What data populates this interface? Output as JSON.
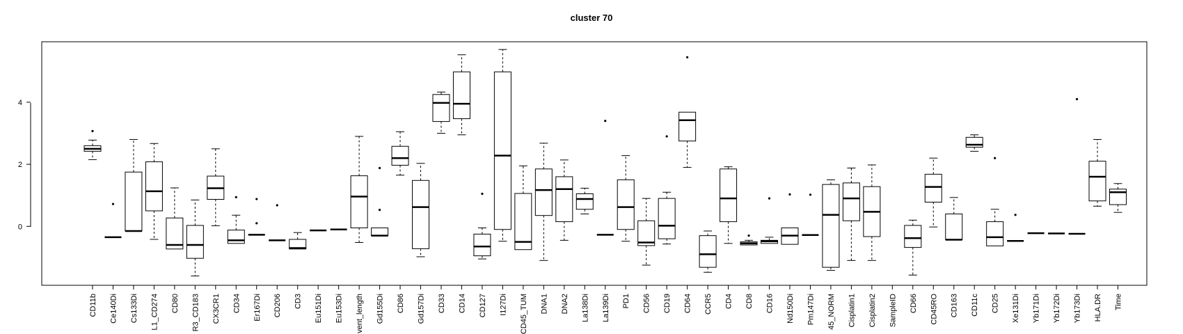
{
  "chart_data": {
    "type": "box",
    "title": "cluster 70",
    "xlabel": "",
    "ylabel": "",
    "ylim": [
      -1.9,
      5.95
    ],
    "yticks": [
      0,
      2,
      4
    ],
    "ytick_labels": [
      "0",
      "2",
      "4"
    ],
    "grid": false,
    "legend": "none",
    "boxes": [
      {
        "label": "CD11b",
        "min": 2.15,
        "q1": 2.42,
        "median": 2.5,
        "q3": 2.6,
        "max": 2.78,
        "outliers": [
          3.07
        ]
      },
      {
        "label": "Ce140Di",
        "min": -0.35,
        "q1": -0.35,
        "median": -0.35,
        "q3": -0.35,
        "max": -0.35,
        "outliers": [
          0.72
        ]
      },
      {
        "label": "Cs133Di",
        "min": -0.15,
        "q1": -0.15,
        "median": -0.15,
        "q3": 1.75,
        "max": 2.8,
        "outliers": []
      },
      {
        "label": "L1_CD274",
        "min": -0.42,
        "q1": 0.5,
        "median": 1.13,
        "q3": 2.08,
        "max": 2.67,
        "outliers": []
      },
      {
        "label": "CD80",
        "min": -0.73,
        "q1": -0.73,
        "median": -0.6,
        "q3": 0.27,
        "max": 1.24,
        "outliers": []
      },
      {
        "label": "R3_CD183",
        "min": -1.6,
        "q1": -1.03,
        "median": -0.6,
        "q3": 0.03,
        "max": 0.85,
        "outliers": []
      },
      {
        "label": "CX3CR1",
        "min": 0.02,
        "q1": 0.87,
        "median": 1.23,
        "q3": 1.62,
        "max": 2.5,
        "outliers": []
      },
      {
        "label": "CD34",
        "min": -0.55,
        "q1": -0.55,
        "median": -0.45,
        "q3": -0.12,
        "max": 0.36,
        "outliers": [
          0.94
        ]
      },
      {
        "label": "Er167Di",
        "min": -0.27,
        "q1": -0.27,
        "median": -0.27,
        "q3": -0.27,
        "max": -0.27,
        "outliers": [
          0.1,
          0.88
        ]
      },
      {
        "label": "CD206",
        "min": -0.45,
        "q1": -0.45,
        "median": -0.45,
        "q3": -0.45,
        "max": -0.45,
        "outliers": [
          0.68
        ]
      },
      {
        "label": "CD3",
        "min": -0.73,
        "q1": -0.73,
        "median": -0.7,
        "q3": -0.42,
        "max": -0.2,
        "outliers": []
      },
      {
        "label": "Eu151Di",
        "min": -0.13,
        "q1": -0.13,
        "median": -0.13,
        "q3": -0.13,
        "max": -0.13,
        "outliers": []
      },
      {
        "label": "Eu153Di",
        "min": -0.1,
        "q1": -0.1,
        "median": -0.1,
        "q3": -0.1,
        "max": -0.1,
        "outliers": []
      },
      {
        "label": "vent_length",
        "min": -0.52,
        "q1": -0.05,
        "median": 0.96,
        "q3": 1.63,
        "max": 2.9,
        "outliers": []
      },
      {
        "label": "Gd155Di",
        "min": -0.3,
        "q1": -0.3,
        "median": -0.3,
        "q3": -0.05,
        "max": -0.05,
        "outliers": [
          0.53,
          1.88
        ]
      },
      {
        "label": "CD86",
        "min": 1.65,
        "q1": 1.97,
        "median": 2.2,
        "q3": 2.58,
        "max": 3.05,
        "outliers": []
      },
      {
        "label": "Gd157Di",
        "min": -0.98,
        "q1": -0.72,
        "median": 0.62,
        "q3": 1.48,
        "max": 2.03,
        "outliers": []
      },
      {
        "label": "CD33",
        "min": 3.0,
        "q1": 3.38,
        "median": 3.98,
        "q3": 4.25,
        "max": 4.33,
        "outliers": []
      },
      {
        "label": "CD14",
        "min": 2.95,
        "q1": 3.47,
        "median": 3.95,
        "q3": 4.98,
        "max": 5.53,
        "outliers": []
      },
      {
        "label": "CD127",
        "min": -1.05,
        "q1": -0.95,
        "median": -0.65,
        "q3": -0.25,
        "max": -0.05,
        "outliers": [
          1.05
        ]
      },
      {
        "label": "I127Di",
        "min": -0.48,
        "q1": -0.1,
        "median": 2.28,
        "q3": 4.98,
        "max": 5.7,
        "outliers": []
      },
      {
        "label": "CD45_TUM",
        "min": -0.75,
        "q1": -0.75,
        "median": -0.5,
        "q3": 1.06,
        "max": 1.95,
        "outliers": []
      },
      {
        "label": "DNA1",
        "min": -1.1,
        "q1": 0.35,
        "median": 1.17,
        "q3": 1.85,
        "max": 2.68,
        "outliers": []
      },
      {
        "label": "DNA2",
        "min": -0.45,
        "q1": 0.15,
        "median": 1.2,
        "q3": 1.6,
        "max": 2.14,
        "outliers": []
      },
      {
        "label": "La138Di",
        "min": 0.4,
        "q1": 0.55,
        "median": 0.88,
        "q3": 1.05,
        "max": 1.23,
        "outliers": []
      },
      {
        "label": "La139Di",
        "min": -0.27,
        "q1": -0.27,
        "median": -0.27,
        "q3": -0.27,
        "max": -0.27,
        "outliers": [
          3.4
        ]
      },
      {
        "label": "PD1",
        "min": -0.48,
        "q1": -0.1,
        "median": 0.62,
        "q3": 1.5,
        "max": 2.28,
        "outliers": []
      },
      {
        "label": "CD56",
        "min": -1.25,
        "q1": -0.62,
        "median": -0.52,
        "q3": 0.18,
        "max": 0.9,
        "outliers": []
      },
      {
        "label": "CD19",
        "min": -0.57,
        "q1": -0.4,
        "median": 0.02,
        "q3": 0.9,
        "max": 1.1,
        "outliers": [
          2.9
        ]
      },
      {
        "label": "CD64",
        "min": 1.9,
        "q1": 2.75,
        "median": 3.42,
        "q3": 3.68,
        "max": 3.68,
        "outliers": [
          5.45
        ]
      },
      {
        "label": "CCR5",
        "min": -1.48,
        "q1": -1.32,
        "median": -0.9,
        "q3": -0.3,
        "max": -0.15,
        "outliers": []
      },
      {
        "label": "CD4",
        "min": -0.55,
        "q1": 0.15,
        "median": 0.9,
        "q3": 1.85,
        "max": 1.92,
        "outliers": []
      },
      {
        "label": "CD8",
        "min": -0.6,
        "q1": -0.6,
        "median": -0.55,
        "q3": -0.5,
        "max": -0.45,
        "outliers": [
          -0.3
        ]
      },
      {
        "label": "CD16",
        "min": -0.55,
        "q1": -0.55,
        "median": -0.48,
        "q3": -0.45,
        "max": -0.35,
        "outliers": [
          0.9
        ]
      },
      {
        "label": "Nd150Di",
        "min": -0.58,
        "q1": -0.58,
        "median": -0.3,
        "q3": -0.05,
        "max": -0.05,
        "outliers": [
          1.03
        ]
      },
      {
        "label": "Pm147Di",
        "min": -0.28,
        "q1": -0.28,
        "median": -0.28,
        "q3": -0.28,
        "max": -0.28,
        "outliers": [
          1.02
        ]
      },
      {
        "label": "45_NORM",
        "min": -1.42,
        "q1": -1.32,
        "median": 0.37,
        "q3": 1.35,
        "max": 1.5,
        "outliers": []
      },
      {
        "label": "Cisplatin1",
        "min": -1.1,
        "q1": 0.18,
        "median": 0.9,
        "q3": 1.4,
        "max": 1.88,
        "outliers": []
      },
      {
        "label": "Cisplatin2",
        "min": -1.1,
        "q1": -0.33,
        "median": 0.47,
        "q3": 1.28,
        "max": 1.98,
        "outliers": []
      },
      {
        "label": "SampleID",
        "min": null,
        "q1": null,
        "median": null,
        "q3": null,
        "max": null,
        "outliers": []
      },
      {
        "label": "CD66",
        "min": -1.57,
        "q1": -0.68,
        "median": -0.38,
        "q3": 0.03,
        "max": 0.2,
        "outliers": []
      },
      {
        "label": "CD45RO",
        "min": -0.02,
        "q1": 0.78,
        "median": 1.27,
        "q3": 1.68,
        "max": 2.2,
        "outliers": []
      },
      {
        "label": "CD163",
        "min": -0.43,
        "q1": -0.43,
        "median": -0.43,
        "q3": 0.4,
        "max": 0.93,
        "outliers": []
      },
      {
        "label": "CD11c",
        "min": 2.42,
        "q1": 2.55,
        "median": 2.63,
        "q3": 2.87,
        "max": 2.95,
        "outliers": []
      },
      {
        "label": "CD25",
        "min": -0.63,
        "q1": -0.63,
        "median": -0.35,
        "q3": 0.15,
        "max": 0.55,
        "outliers": [
          2.2
        ]
      },
      {
        "label": "Xe131Di",
        "min": -0.47,
        "q1": -0.47,
        "median": -0.47,
        "q3": -0.47,
        "max": -0.47,
        "outliers": [
          0.37
        ]
      },
      {
        "label": "Yb171Di",
        "min": -0.22,
        "q1": -0.22,
        "median": -0.22,
        "q3": -0.22,
        "max": -0.22,
        "outliers": []
      },
      {
        "label": "Yb172Di",
        "min": -0.23,
        "q1": -0.23,
        "median": -0.23,
        "q3": -0.23,
        "max": -0.23,
        "outliers": []
      },
      {
        "label": "Yb173Di",
        "min": -0.24,
        "q1": -0.24,
        "median": -0.24,
        "q3": -0.24,
        "max": -0.24,
        "outliers": [
          4.1
        ]
      },
      {
        "label": "HLA.DR",
        "min": 0.65,
        "q1": 0.82,
        "median": 1.6,
        "q3": 2.1,
        "max": 2.8,
        "outliers": []
      },
      {
        "label": "Time",
        "min": 0.45,
        "q1": 0.7,
        "median": 1.1,
        "q3": 1.2,
        "max": 1.38,
        "outliers": []
      }
    ]
  }
}
